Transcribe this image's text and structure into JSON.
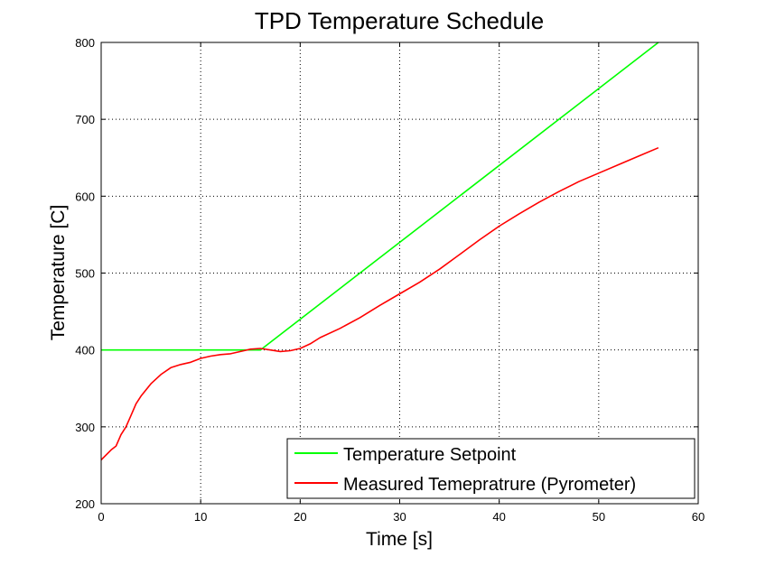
{
  "chart_data": {
    "type": "line",
    "title": "TPD Temperature Schedule",
    "xlabel": "Time [s]",
    "ylabel": "Temperature [C]",
    "xlim": [
      0,
      60
    ],
    "ylim": [
      200,
      800
    ],
    "xticks": [
      0,
      10,
      20,
      30,
      40,
      50,
      60
    ],
    "yticks": [
      200,
      300,
      400,
      500,
      600,
      700,
      800
    ],
    "grid": true,
    "legend_position": "bottom-right",
    "series": [
      {
        "name": "Temperature Setpoint",
        "color": "#00ff00",
        "x": [
          0,
          16,
          56
        ],
        "y": [
          400,
          400,
          800
        ]
      },
      {
        "name": "Measured Temepratrure (Pyrometer)",
        "color": "#ff0000",
        "x": [
          0,
          1,
          1.5,
          2,
          2.5,
          3,
          3.5,
          4,
          5,
          6,
          7,
          8,
          9,
          10,
          11,
          12,
          13,
          14,
          15,
          16,
          17,
          18,
          19,
          20,
          21,
          22,
          24,
          26,
          28,
          30,
          32,
          34,
          36,
          38,
          40,
          42,
          44,
          46,
          48,
          50,
          52,
          54,
          56
        ],
        "y": [
          257,
          270,
          275,
          290,
          300,
          315,
          330,
          340,
          356,
          368,
          377,
          381,
          384,
          389,
          392,
          394,
          395,
          398,
          401,
          402,
          400,
          398,
          399,
          402,
          408,
          416,
          428,
          442,
          458,
          473,
          488,
          505,
          524,
          543,
          561,
          577,
          592,
          606,
          619,
          630,
          641,
          652,
          663
        ]
      }
    ]
  }
}
